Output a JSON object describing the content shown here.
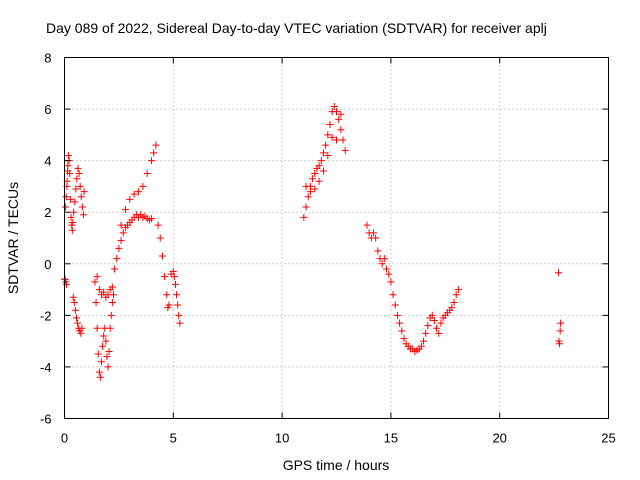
{
  "chart_data": {
    "type": "scatter",
    "title": "Day 089 of 2022, Sidereal Day-to-day VTEC variation (SDTVAR) for receiver aplj",
    "xlabel": "GPS time / hours",
    "ylabel": "SDTVAR / TECUs",
    "xlim": [
      0,
      25
    ],
    "ylim": [
      -6,
      8
    ],
    "xticks": [
      0,
      5,
      10,
      15,
      20,
      25
    ],
    "yticks": [
      -6,
      -4,
      -2,
      0,
      2,
      4,
      6,
      8
    ],
    "xtick_labels": [
      "0",
      "5",
      "10",
      "15",
      "20",
      "25"
    ],
    "ytick_labels": [
      "-6",
      "-4",
      "-2",
      "0",
      "2",
      "4",
      "6",
      "8"
    ],
    "grid": true,
    "marker": "+",
    "color": "#ff0000",
    "series": [
      {
        "name": "SDTVAR",
        "x": [
          0.0,
          0.03,
          0.06,
          0.09,
          0.12,
          0.15,
          0.18,
          0.21,
          0.24,
          0.27,
          0.3,
          0.33,
          0.36,
          0.05,
          0.08,
          0.11,
          0.14,
          0.4,
          0.45,
          0.5,
          0.55,
          0.6,
          0.65,
          0.7,
          0.75,
          0.8,
          0.38,
          0.42,
          0.47,
          0.52,
          0.57,
          0.62,
          0.67,
          0.72,
          0.77,
          0.82,
          0.87,
          0.9,
          1.4,
          1.45,
          1.5,
          1.55,
          1.6,
          1.65,
          1.7,
          1.75,
          1.8,
          1.85,
          1.9,
          1.95,
          2.0,
          2.05,
          2.1,
          2.15,
          2.2,
          2.25,
          1.5,
          1.6,
          1.7,
          1.8,
          1.9,
          2.0,
          2.1,
          2.2,
          2.3,
          2.4,
          2.5,
          2.6,
          2.7,
          2.8,
          2.9,
          3.0,
          3.1,
          3.2,
          3.3,
          3.4,
          3.5,
          3.6,
          3.7,
          3.8,
          3.9,
          4.0,
          2.6,
          2.8,
          3.0,
          3.2,
          3.4,
          3.6,
          3.8,
          4.0,
          4.1,
          4.2,
          4.3,
          4.4,
          4.5,
          4.6,
          4.7,
          4.75,
          4.8,
          4.9,
          5.0,
          5.05,
          5.1,
          5.15,
          5.2,
          5.25,
          5.3,
          11.0,
          11.1,
          11.2,
          11.3,
          11.4,
          11.5,
          11.6,
          11.7,
          11.8,
          11.9,
          12.0,
          12.1,
          12.2,
          12.3,
          12.4,
          12.5,
          12.6,
          12.7,
          12.8,
          12.9,
          11.1,
          11.3,
          11.5,
          11.7,
          11.9,
          12.1,
          12.3,
          12.5,
          12.7,
          13.9,
          14.0,
          14.1,
          14.2,
          14.3,
          14.4,
          14.5,
          14.6,
          14.7,
          14.8,
          14.9,
          15.0,
          15.1,
          15.2,
          15.3,
          15.4,
          15.5,
          15.6,
          15.7,
          15.8,
          15.9,
          16.0,
          16.1,
          16.2,
          16.3,
          16.4,
          16.5,
          16.6,
          16.7,
          16.8,
          16.9,
          17.0,
          17.1,
          17.2,
          17.3,
          17.4,
          17.5,
          17.6,
          17.7,
          17.8,
          17.9,
          18.0,
          18.1,
          22.7,
          22.72,
          22.75,
          22.78,
          22.8
        ],
        "y": [
          -0.6,
          -0.6,
          -0.7,
          -0.8,
          3.2,
          3.8,
          4.2,
          4.0,
          3.5,
          2.5,
          1.8,
          1.5,
          1.3,
          2.2,
          2.6,
          3.0,
          3.6,
          -1.3,
          -1.5,
          -1.8,
          -2.1,
          -2.3,
          -2.5,
          -2.6,
          -2.7,
          -2.5,
          1.6,
          2.0,
          2.4,
          2.9,
          3.3,
          3.7,
          3.5,
          3.0,
          2.6,
          2.2,
          1.9,
          2.8,
          -0.7,
          -1.5,
          -2.5,
          -3.5,
          -4.2,
          -4.4,
          -3.8,
          -3.2,
          -2.8,
          -2.5,
          -3.0,
          -3.6,
          -4.0,
          -3.4,
          -2.5,
          -2.0,
          -1.5,
          -1.2,
          -0.5,
          -1.0,
          -1.2,
          -1.1,
          -1.3,
          -1.2,
          -1.0,
          -0.9,
          -0.2,
          0.2,
          0.6,
          0.9,
          1.2,
          1.4,
          1.5,
          1.6,
          1.7,
          1.8,
          1.9,
          1.8,
          1.9,
          1.8,
          1.85,
          1.75,
          1.7,
          1.75,
          1.5,
          2.1,
          2.5,
          2.7,
          2.8,
          3.0,
          3.5,
          4.0,
          4.3,
          4.6,
          1.5,
          1.0,
          0.3,
          -0.5,
          -1.2,
          -1.7,
          -1.6,
          -0.4,
          -0.3,
          -0.5,
          -0.8,
          -1.2,
          -1.6,
          -2.0,
          -2.3,
          1.8,
          2.2,
          2.6,
          3.0,
          3.3,
          3.5,
          3.7,
          3.8,
          4.0,
          4.3,
          4.6,
          5.0,
          5.4,
          5.9,
          6.1,
          5.9,
          5.6,
          5.2,
          4.8,
          4.4,
          3.0,
          2.8,
          2.9,
          3.2,
          3.6,
          4.2,
          4.9,
          4.8,
          5.8,
          1.5,
          1.2,
          1.0,
          1.2,
          1.0,
          0.5,
          0.2,
          0.0,
          0.2,
          -0.2,
          -0.4,
          -0.7,
          -1.2,
          -1.6,
          -2.0,
          -2.3,
          -2.6,
          -2.9,
          -3.1,
          -3.2,
          -3.3,
          -3.3,
          -3.4,
          -3.35,
          -3.3,
          -3.2,
          -3.0,
          -2.7,
          -2.4,
          -2.1,
          -2.0,
          -2.2,
          -2.5,
          -2.7,
          -2.3,
          -2.1,
          -2.0,
          -1.9,
          -1.8,
          -1.7,
          -1.5,
          -1.2,
          -1.0,
          -0.35,
          -3.0,
          -3.1,
          -2.6,
          -2.3
        ]
      }
    ]
  }
}
